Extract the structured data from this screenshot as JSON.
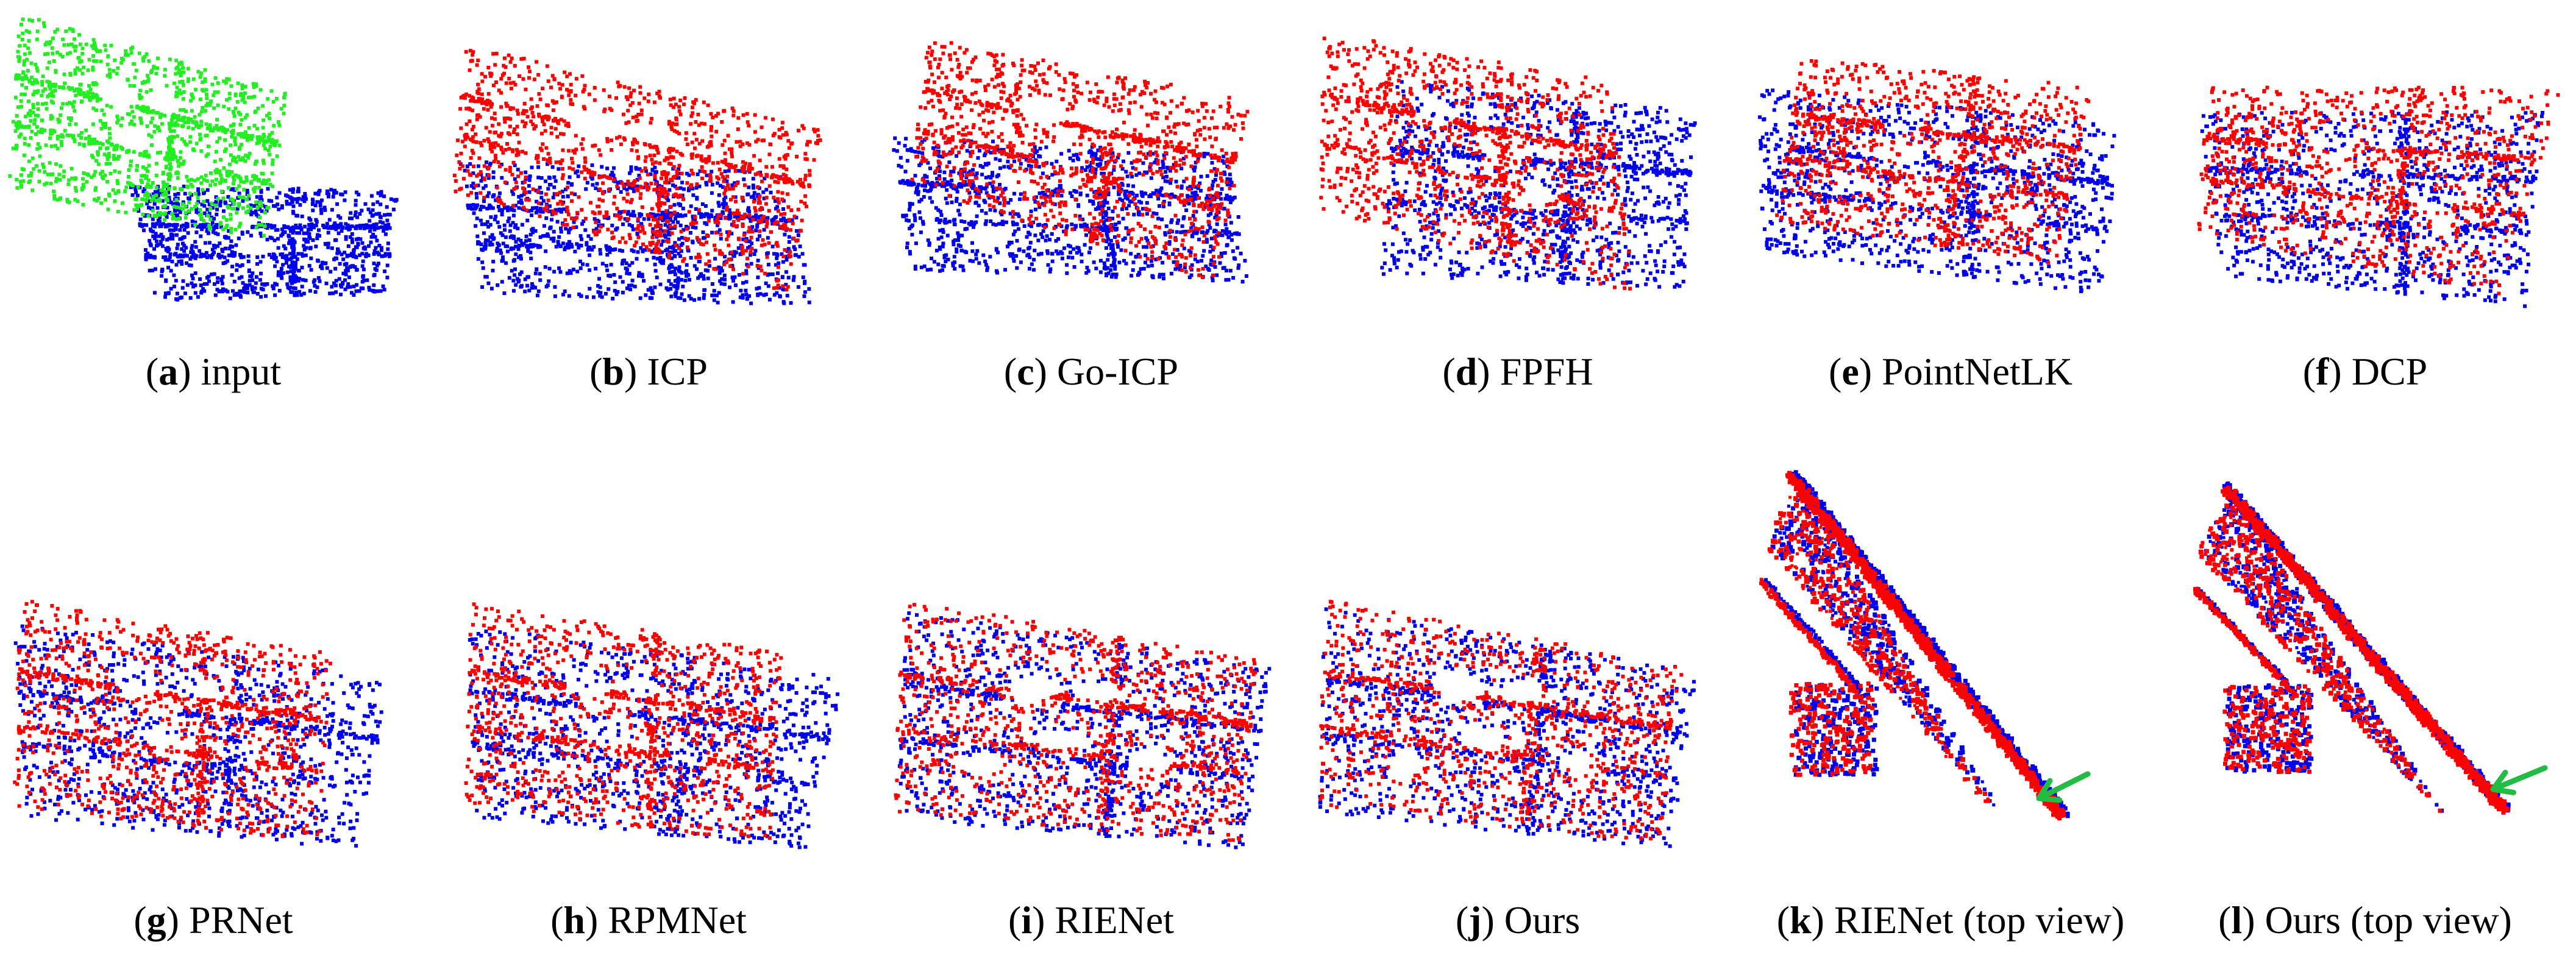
{
  "figure": {
    "panels": [
      {
        "id": "a",
        "letter": "a",
        "label": "input",
        "view": "perspective"
      },
      {
        "id": "b",
        "letter": "b",
        "label": "ICP",
        "view": "perspective"
      },
      {
        "id": "c",
        "letter": "c",
        "label": "Go-ICP",
        "view": "perspective"
      },
      {
        "id": "d",
        "letter": "d",
        "label": "FPFH",
        "view": "perspective"
      },
      {
        "id": "e",
        "letter": "e",
        "label": "PointNetLK",
        "view": "perspective"
      },
      {
        "id": "f",
        "letter": "f",
        "label": "DCP",
        "view": "perspective"
      },
      {
        "id": "g",
        "letter": "g",
        "label": "PRNet",
        "view": "perspective"
      },
      {
        "id": "h",
        "letter": "h",
        "label": "RPMNet",
        "view": "perspective"
      },
      {
        "id": "i",
        "letter": "i",
        "label": "RIENet",
        "view": "perspective"
      },
      {
        "id": "j",
        "letter": "j",
        "label": "Ours",
        "view": "perspective"
      },
      {
        "id": "k",
        "letter": "k",
        "label": "RIENet (top view)",
        "view": "top"
      },
      {
        "id": "l",
        "letter": "l",
        "label": "Ours (top view)",
        "view": "top"
      }
    ]
  },
  "colors": {
    "source": "#ff0000",
    "target": "#0000ee",
    "input_source": "#22ee22",
    "arrow": "#22bb44"
  },
  "icons": [
    "green-arrow-icon"
  ]
}
